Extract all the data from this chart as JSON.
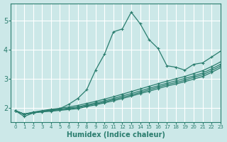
{
  "xlabel": "Humidex (Indice chaleur)",
  "bg_color": "#cce8e8",
  "grid_color": "#ffffff",
  "line_color": "#2a7d6e",
  "xlim": [
    -0.5,
    23
  ],
  "ylim": [
    1.5,
    5.6
  ],
  "yticks": [
    2,
    3,
    4,
    5
  ],
  "xticks": [
    0,
    1,
    2,
    3,
    4,
    5,
    6,
    7,
    8,
    9,
    10,
    11,
    12,
    13,
    14,
    15,
    16,
    17,
    18,
    19,
    20,
    21,
    22,
    23
  ],
  "lines": [
    {
      "x": [
        0,
        1,
        2,
        3,
        4,
        5,
        6,
        7,
        8,
        9,
        10,
        11,
        12,
        13,
        14,
        15,
        16,
        17,
        18,
        19,
        20,
        21,
        22,
        23
      ],
      "y": [
        1.9,
        1.7,
        1.82,
        1.87,
        1.92,
        1.97,
        2.12,
        2.32,
        2.62,
        3.3,
        3.85,
        4.62,
        4.72,
        5.3,
        4.9,
        4.35,
        4.05,
        3.45,
        3.4,
        3.3,
        3.5,
        3.55,
        3.75,
        3.95
      ]
    },
    {
      "x": [
        0,
        1,
        2,
        3,
        4,
        5,
        6,
        7,
        8,
        9,
        10,
        11,
        12,
        13,
        14,
        15,
        16,
        17,
        18,
        19,
        20,
        21,
        22,
        23
      ],
      "y": [
        1.9,
        1.78,
        1.85,
        1.9,
        1.95,
        1.98,
        2.03,
        2.08,
        2.15,
        2.22,
        2.3,
        2.38,
        2.47,
        2.56,
        2.65,
        2.74,
        2.83,
        2.92,
        3.0,
        3.08,
        3.18,
        3.28,
        3.42,
        3.58
      ]
    },
    {
      "x": [
        0,
        1,
        2,
        3,
        4,
        5,
        6,
        7,
        8,
        9,
        10,
        11,
        12,
        13,
        14,
        15,
        16,
        17,
        18,
        19,
        20,
        21,
        22,
        23
      ],
      "y": [
        1.9,
        1.78,
        1.84,
        1.88,
        1.92,
        1.95,
        1.99,
        2.03,
        2.1,
        2.17,
        2.24,
        2.32,
        2.41,
        2.49,
        2.58,
        2.67,
        2.76,
        2.85,
        2.93,
        3.01,
        3.1,
        3.2,
        3.34,
        3.5
      ]
    },
    {
      "x": [
        0,
        1,
        2,
        3,
        4,
        5,
        6,
        7,
        8,
        9,
        10,
        11,
        12,
        13,
        14,
        15,
        16,
        17,
        18,
        19,
        20,
        21,
        22,
        23
      ],
      "y": [
        1.9,
        1.78,
        1.83,
        1.87,
        1.9,
        1.93,
        1.97,
        2.0,
        2.07,
        2.13,
        2.2,
        2.28,
        2.36,
        2.44,
        2.53,
        2.62,
        2.71,
        2.8,
        2.87,
        2.95,
        3.05,
        3.14,
        3.28,
        3.44
      ]
    },
    {
      "x": [
        0,
        1,
        2,
        3,
        4,
        5,
        6,
        7,
        8,
        9,
        10,
        11,
        12,
        13,
        14,
        15,
        16,
        17,
        18,
        19,
        20,
        21,
        22,
        23
      ],
      "y": [
        1.9,
        1.78,
        1.82,
        1.86,
        1.88,
        1.91,
        1.94,
        1.97,
        2.04,
        2.1,
        2.17,
        2.24,
        2.32,
        2.4,
        2.49,
        2.57,
        2.66,
        2.75,
        2.82,
        2.9,
        2.99,
        3.08,
        3.22,
        3.38
      ]
    }
  ]
}
